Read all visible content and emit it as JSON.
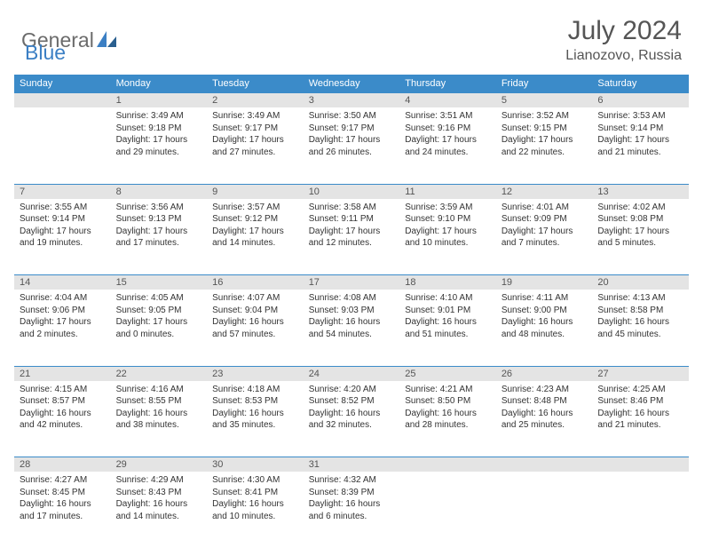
{
  "brand": {
    "part1": "General",
    "part2": "Blue"
  },
  "title": "July 2024",
  "location": "Lianozovo, Russia",
  "colors": {
    "header_bg": "#3b8bc9",
    "header_text": "#ffffff",
    "daynum_bg": "#e4e4e4",
    "border": "#3b8bc9",
    "text": "#333333",
    "brand_gray": "#6b6b6b",
    "brand_blue": "#3b7fc4"
  },
  "weekdays": [
    "Sunday",
    "Monday",
    "Tuesday",
    "Wednesday",
    "Thursday",
    "Friday",
    "Saturday"
  ],
  "weeks": [
    {
      "nums": [
        "",
        "1",
        "2",
        "3",
        "4",
        "5",
        "6"
      ],
      "cells": [
        null,
        {
          "sunrise": "Sunrise: 3:49 AM",
          "sunset": "Sunset: 9:18 PM",
          "day1": "Daylight: 17 hours",
          "day2": "and 29 minutes."
        },
        {
          "sunrise": "Sunrise: 3:49 AM",
          "sunset": "Sunset: 9:17 PM",
          "day1": "Daylight: 17 hours",
          "day2": "and 27 minutes."
        },
        {
          "sunrise": "Sunrise: 3:50 AM",
          "sunset": "Sunset: 9:17 PM",
          "day1": "Daylight: 17 hours",
          "day2": "and 26 minutes."
        },
        {
          "sunrise": "Sunrise: 3:51 AM",
          "sunset": "Sunset: 9:16 PM",
          "day1": "Daylight: 17 hours",
          "day2": "and 24 minutes."
        },
        {
          "sunrise": "Sunrise: 3:52 AM",
          "sunset": "Sunset: 9:15 PM",
          "day1": "Daylight: 17 hours",
          "day2": "and 22 minutes."
        },
        {
          "sunrise": "Sunrise: 3:53 AM",
          "sunset": "Sunset: 9:14 PM",
          "day1": "Daylight: 17 hours",
          "day2": "and 21 minutes."
        }
      ]
    },
    {
      "nums": [
        "7",
        "8",
        "9",
        "10",
        "11",
        "12",
        "13"
      ],
      "cells": [
        {
          "sunrise": "Sunrise: 3:55 AM",
          "sunset": "Sunset: 9:14 PM",
          "day1": "Daylight: 17 hours",
          "day2": "and 19 minutes."
        },
        {
          "sunrise": "Sunrise: 3:56 AM",
          "sunset": "Sunset: 9:13 PM",
          "day1": "Daylight: 17 hours",
          "day2": "and 17 minutes."
        },
        {
          "sunrise": "Sunrise: 3:57 AM",
          "sunset": "Sunset: 9:12 PM",
          "day1": "Daylight: 17 hours",
          "day2": "and 14 minutes."
        },
        {
          "sunrise": "Sunrise: 3:58 AM",
          "sunset": "Sunset: 9:11 PM",
          "day1": "Daylight: 17 hours",
          "day2": "and 12 minutes."
        },
        {
          "sunrise": "Sunrise: 3:59 AM",
          "sunset": "Sunset: 9:10 PM",
          "day1": "Daylight: 17 hours",
          "day2": "and 10 minutes."
        },
        {
          "sunrise": "Sunrise: 4:01 AM",
          "sunset": "Sunset: 9:09 PM",
          "day1": "Daylight: 17 hours",
          "day2": "and 7 minutes."
        },
        {
          "sunrise": "Sunrise: 4:02 AM",
          "sunset": "Sunset: 9:08 PM",
          "day1": "Daylight: 17 hours",
          "day2": "and 5 minutes."
        }
      ]
    },
    {
      "nums": [
        "14",
        "15",
        "16",
        "17",
        "18",
        "19",
        "20"
      ],
      "cells": [
        {
          "sunrise": "Sunrise: 4:04 AM",
          "sunset": "Sunset: 9:06 PM",
          "day1": "Daylight: 17 hours",
          "day2": "and 2 minutes."
        },
        {
          "sunrise": "Sunrise: 4:05 AM",
          "sunset": "Sunset: 9:05 PM",
          "day1": "Daylight: 17 hours",
          "day2": "and 0 minutes."
        },
        {
          "sunrise": "Sunrise: 4:07 AM",
          "sunset": "Sunset: 9:04 PM",
          "day1": "Daylight: 16 hours",
          "day2": "and 57 minutes."
        },
        {
          "sunrise": "Sunrise: 4:08 AM",
          "sunset": "Sunset: 9:03 PM",
          "day1": "Daylight: 16 hours",
          "day2": "and 54 minutes."
        },
        {
          "sunrise": "Sunrise: 4:10 AM",
          "sunset": "Sunset: 9:01 PM",
          "day1": "Daylight: 16 hours",
          "day2": "and 51 minutes."
        },
        {
          "sunrise": "Sunrise: 4:11 AM",
          "sunset": "Sunset: 9:00 PM",
          "day1": "Daylight: 16 hours",
          "day2": "and 48 minutes."
        },
        {
          "sunrise": "Sunrise: 4:13 AM",
          "sunset": "Sunset: 8:58 PM",
          "day1": "Daylight: 16 hours",
          "day2": "and 45 minutes."
        }
      ]
    },
    {
      "nums": [
        "21",
        "22",
        "23",
        "24",
        "25",
        "26",
        "27"
      ],
      "cells": [
        {
          "sunrise": "Sunrise: 4:15 AM",
          "sunset": "Sunset: 8:57 PM",
          "day1": "Daylight: 16 hours",
          "day2": "and 42 minutes."
        },
        {
          "sunrise": "Sunrise: 4:16 AM",
          "sunset": "Sunset: 8:55 PM",
          "day1": "Daylight: 16 hours",
          "day2": "and 38 minutes."
        },
        {
          "sunrise": "Sunrise: 4:18 AM",
          "sunset": "Sunset: 8:53 PM",
          "day1": "Daylight: 16 hours",
          "day2": "and 35 minutes."
        },
        {
          "sunrise": "Sunrise: 4:20 AM",
          "sunset": "Sunset: 8:52 PM",
          "day1": "Daylight: 16 hours",
          "day2": "and 32 minutes."
        },
        {
          "sunrise": "Sunrise: 4:21 AM",
          "sunset": "Sunset: 8:50 PM",
          "day1": "Daylight: 16 hours",
          "day2": "and 28 minutes."
        },
        {
          "sunrise": "Sunrise: 4:23 AM",
          "sunset": "Sunset: 8:48 PM",
          "day1": "Daylight: 16 hours",
          "day2": "and 25 minutes."
        },
        {
          "sunrise": "Sunrise: 4:25 AM",
          "sunset": "Sunset: 8:46 PM",
          "day1": "Daylight: 16 hours",
          "day2": "and 21 minutes."
        }
      ]
    },
    {
      "nums": [
        "28",
        "29",
        "30",
        "31",
        "",
        "",
        ""
      ],
      "cells": [
        {
          "sunrise": "Sunrise: 4:27 AM",
          "sunset": "Sunset: 8:45 PM",
          "day1": "Daylight: 16 hours",
          "day2": "and 17 minutes."
        },
        {
          "sunrise": "Sunrise: 4:29 AM",
          "sunset": "Sunset: 8:43 PM",
          "day1": "Daylight: 16 hours",
          "day2": "and 14 minutes."
        },
        {
          "sunrise": "Sunrise: 4:30 AM",
          "sunset": "Sunset: 8:41 PM",
          "day1": "Daylight: 16 hours",
          "day2": "and 10 minutes."
        },
        {
          "sunrise": "Sunrise: 4:32 AM",
          "sunset": "Sunset: 8:39 PM",
          "day1": "Daylight: 16 hours",
          "day2": "and 6 minutes."
        },
        null,
        null,
        null
      ]
    }
  ]
}
